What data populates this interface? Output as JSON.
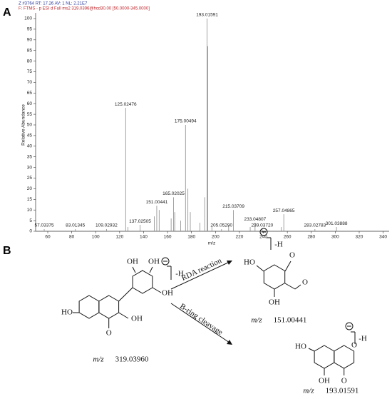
{
  "panels": {
    "a": "A",
    "b": "B"
  },
  "chart_data": {
    "type": "spectrum",
    "header": [
      "Z #3764   RT: 17.26   AV: 1   NL: 2.21E7",
      "F: FTMS - p ESI d Full ms2 319.0396@hcd30.00 [50.0000-345.0000]"
    ],
    "x_label": "m/z",
    "y_label": "Relative Abundance",
    "x": [
      57.03375,
      83.01345,
      109.02932,
      125.02476,
      137.02505,
      151.00441,
      165.02025,
      175.00494,
      193.01591,
      205.0529,
      215.03709,
      233.04807,
      239.0372,
      257.04865,
      283.02783,
      301.03888
    ],
    "x_labels": [
      "57.03375",
      "83.01345",
      "109.02932",
      "125.02476",
      "137.02505",
      "151.00441",
      "165.02025",
      "175.00494",
      "193.01591",
      "205.05290",
      "215.03709",
      "233.04807",
      "239.03720",
      "257.04865",
      "283.02783",
      "301.03888"
    ],
    "values": [
      1,
      1,
      1,
      58,
      3,
      12,
      16,
      50,
      100,
      1,
      10,
      4,
      1,
      8,
      1,
      2
    ],
    "minor_peaks": {
      "x": [
        127,
        149,
        153,
        163,
        166,
        171,
        177,
        179,
        187,
        191,
        193.5,
        197,
        211,
        229,
        255
      ],
      "values": [
        2,
        7,
        10,
        6,
        9,
        5,
        20,
        9,
        4,
        16,
        87,
        2,
        3,
        2,
        2
      ]
    },
    "color": "#8a8a8a",
    "xlim": [
      50,
      345
    ],
    "xticks": [
      60,
      80,
      100,
      120,
      140,
      160,
      180,
      200,
      220,
      240,
      260,
      280,
      300,
      320,
      340
    ],
    "ylim": [
      0,
      100
    ],
    "yticks": [
      0,
      5,
      10,
      15,
      20,
      25,
      30,
      35,
      40,
      45,
      50,
      55,
      60,
      65,
      70,
      75,
      80,
      85,
      90,
      95,
      100
    ]
  },
  "diagram": {
    "precursor": {
      "atoms": [
        "HO",
        "O",
        "OH",
        "OH",
        "OH",
        "OH"
      ],
      "charge": "-H",
      "mz_label": "m/z",
      "mz": "319.03960"
    },
    "reactions": [
      "RDA reaction",
      "B-ring cleavage"
    ],
    "products": [
      {
        "atoms": [
          "HO",
          "O",
          "OH",
          "O"
        ],
        "charge": "-H",
        "mz_label": "m/z",
        "mz": "151.00441"
      },
      {
        "atoms": [
          "HO",
          "OH",
          "O",
          "O"
        ],
        "charge": "-H",
        "mz_label": "m/z",
        "mz": "193.01591"
      }
    ]
  }
}
